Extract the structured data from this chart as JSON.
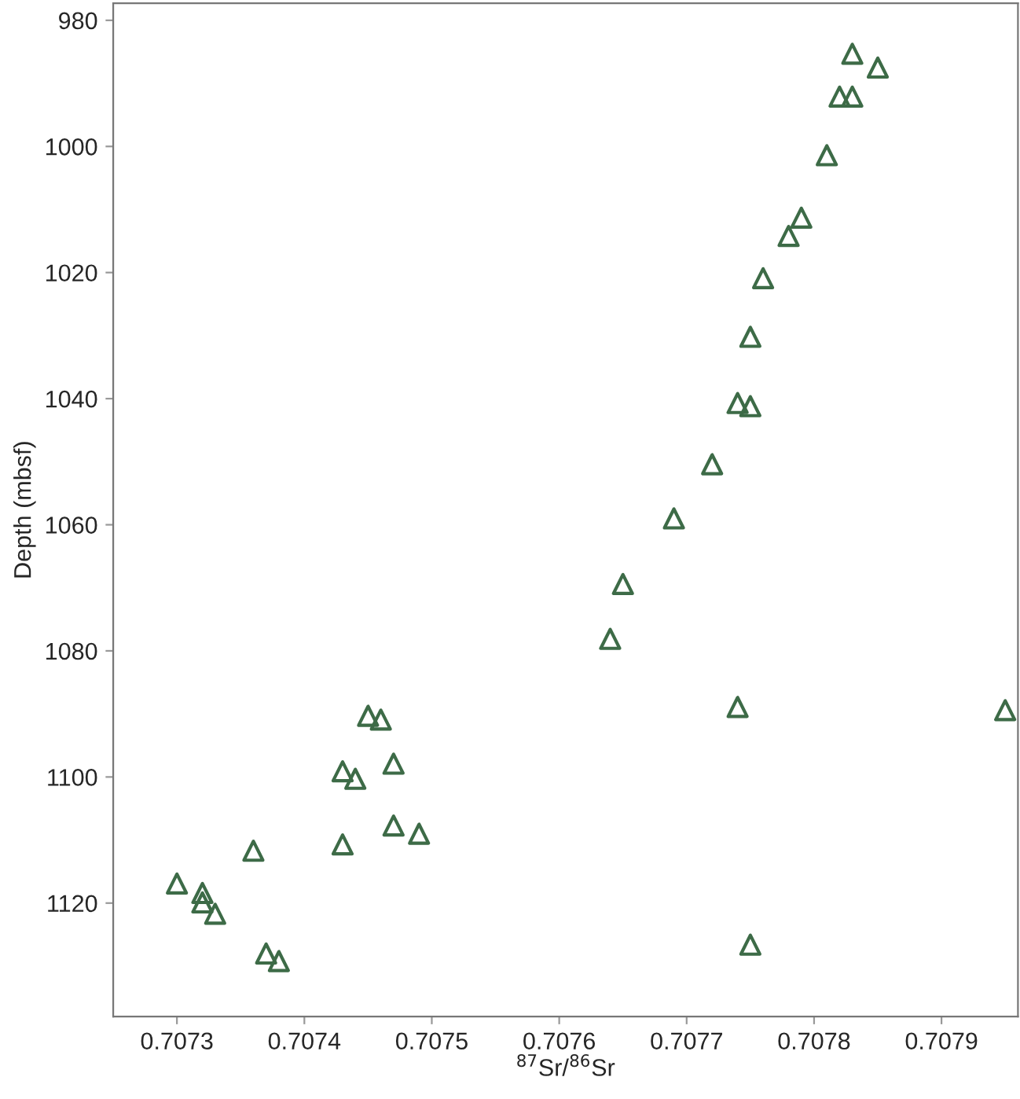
{
  "chart_data": {
    "type": "scatter",
    "xlabel": "$^{87}$Sr/$^{86}$Sr",
    "ylabel": "Depth (mbsf)",
    "marker": "triangle",
    "grid": false,
    "xlim": [
      0.70725,
      0.70796
    ],
    "ylim": [
      1138,
      977.3
    ],
    "xticks": [
      0.7073,
      0.7074,
      0.7075,
      0.7076,
      0.7077,
      0.7078,
      0.7079
    ],
    "yticks": [
      980,
      1000,
      1020,
      1040,
      1060,
      1080,
      1100,
      1120
    ],
    "series": [
      {
        "color": "#3d6b47",
        "x": [
          0.70783,
          0.70785,
          0.70782,
          0.70783,
          0.70781,
          0.70779,
          0.70778,
          0.70776,
          0.70775,
          0.70774,
          0.70775,
          0.70772,
          0.70769,
          0.70765,
          0.70764,
          0.70774,
          0.70795,
          0.70745,
          0.70746,
          0.70747,
          0.70743,
          0.70744,
          0.70747,
          0.70749,
          0.70743,
          0.70736,
          0.7073,
          0.70732,
          0.70732,
          0.70733,
          0.70737,
          0.70738,
          0.70775
        ],
        "values": [
          985.3,
          987.5,
          992.1,
          992.1,
          1001.4,
          1011.3,
          1014.2,
          1020.9,
          1030.2,
          1040.7,
          1041.2,
          1050.4,
          1059.0,
          1069.4,
          1078.1,
          1088.9,
          1089.4,
          1090.3,
          1090.9,
          1097.9,
          1099.1,
          1100.3,
          1107.7,
          1109.0,
          1110.7,
          1111.7,
          1116.9,
          1118.4,
          1119.9,
          1121.7,
          1128.0,
          1129.2,
          1126.6
        ]
      }
    ]
  }
}
